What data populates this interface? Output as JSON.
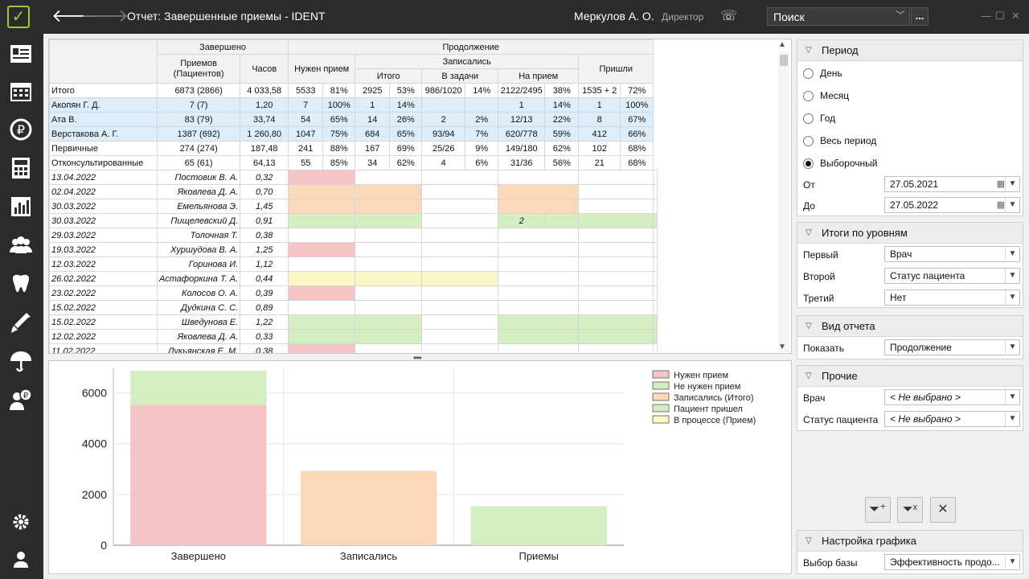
{
  "app": {
    "title": "Отчет: Завершенные приемы - IDENT",
    "user": "Меркулов А. О.",
    "role": "Директор",
    "search_placeholder": "Поиск",
    "more": "..."
  },
  "table": {
    "h_completed": "Завершено",
    "h_cont": "Продолжение",
    "h_visits": "Приемов (Пациентов)",
    "h_hours": "Часов",
    "h_need": "Нужен прием",
    "h_signed": "Записались",
    "h_total": "Итого",
    "h_tasks": "В задачи",
    "h_appt": "На прием",
    "h_came": "Пришли",
    "rows": [
      {
        "name": "Итого",
        "v": [
          "6873 (2866)",
          "4 033,58",
          "5533",
          "81%",
          "2925",
          "53%",
          "986/1020",
          "14%",
          "2122/2495",
          "38%",
          "1535 + 2",
          "72%"
        ],
        "hl": false
      },
      {
        "name": "Акопян Г. Д.",
        "v": [
          "7 (7)",
          "1,20",
          "7",
          "100%",
          "1",
          "14%",
          "",
          "",
          "1",
          "14%",
          "1",
          "100%"
        ],
        "hl": true
      },
      {
        "name": "Ата В.",
        "v": [
          "83 (79)",
          "33,74",
          "54",
          "65%",
          "14",
          "26%",
          "2",
          "2%",
          "12/13",
          "22%",
          "8",
          "67%"
        ],
        "hl": true
      },
      {
        "name": "Верстакова А. Г.",
        "v": [
          "1387 (692)",
          "1 260,80",
          "1047",
          "75%",
          "684",
          "65%",
          "93/94",
          "7%",
          "620/778",
          "59%",
          "412",
          "66%"
        ],
        "hl": true
      },
      {
        "name": "Первичные",
        "v": [
          "274 (274)",
          "187,48",
          "241",
          "88%",
          "167",
          "69%",
          "25/26",
          "9%",
          "149/180",
          "62%",
          "102",
          "68%"
        ],
        "hl": false
      },
      {
        "name": "Отконсультированные",
        "v": [
          "65 (61)",
          "64,13",
          "55",
          "85%",
          "34",
          "62%",
          "4",
          "6%",
          "31/36",
          "56%",
          "21",
          "68%"
        ]
      }
    ],
    "details": [
      {
        "date": "13.04.2022",
        "doc": "Постовик В. А.",
        "val": "0,32",
        "c": [
          "pink",
          "",
          "",
          "",
          "",
          ""
        ],
        "t": ""
      },
      {
        "date": "02.04.2022",
        "doc": "Яковлева Д. А.",
        "val": "0,70",
        "c": [
          "peach",
          "peach",
          "",
          "peach",
          "",
          ""
        ],
        "t": ""
      },
      {
        "date": "30.03.2022",
        "doc": "Емельянова Э.",
        "val": "1,45",
        "c": [
          "peach",
          "peach",
          "",
          "peach",
          "",
          ""
        ],
        "t": ""
      },
      {
        "date": "30.03.2022",
        "doc": "Пищелевский Д.",
        "val": "0,91",
        "c": [
          "green",
          "green",
          "",
          "green",
          "green",
          "green"
        ],
        "t": "2"
      },
      {
        "date": "29.03.2022",
        "doc": "Толочная Т.",
        "val": "0,38",
        "c": [
          "",
          "",
          "",
          "",
          "",
          ""
        ],
        "t": ""
      },
      {
        "date": "19.03.2022",
        "doc": "Хуршудова В. А.",
        "val": "1,25",
        "c": [
          "pink",
          "",
          "",
          "",
          "",
          ""
        ],
        "t": ""
      },
      {
        "date": "12.03.2022",
        "doc": "Горинова И.",
        "val": "1,12",
        "c": [
          "",
          "",
          "",
          "",
          "",
          ""
        ],
        "t": ""
      },
      {
        "date": "26.02.2022",
        "doc": "Астафоркина Т. А.",
        "val": "0,44",
        "c": [
          "yellow",
          "yellow",
          "yellow",
          "",
          "",
          ""
        ],
        "t": ""
      },
      {
        "date": "23.02.2022",
        "doc": "Колосов О. А.",
        "val": "0,39",
        "c": [
          "pink",
          "",
          "",
          "",
          "",
          ""
        ],
        "t": ""
      },
      {
        "date": "15.02.2022",
        "doc": "Дудкина С. С.",
        "val": "0,89",
        "c": [
          "",
          "",
          "",
          "",
          "",
          ""
        ],
        "t": ""
      },
      {
        "date": "15.02.2022",
        "doc": "Шведунова Е.",
        "val": "1,22",
        "c": [
          "green",
          "green",
          "",
          "green",
          "green",
          "green"
        ],
        "t": ""
      },
      {
        "date": "12.02.2022",
        "doc": "Яковлева Д. А.",
        "val": "0,33",
        "c": [
          "green",
          "green",
          "",
          "green",
          "green",
          "green"
        ],
        "t": ""
      },
      {
        "date": "11.02.2022",
        "doc": "Лукьянская Е. М.",
        "val": "0,38",
        "c": [
          "pink",
          "",
          "",
          "",
          "",
          ""
        ],
        "t": ""
      }
    ]
  },
  "chart_data": {
    "type": "bar",
    "categories": [
      "Завершено",
      "Записались",
      "Приемы"
    ],
    "series": [
      {
        "name": "Нужен прием",
        "color": "#f5c5c5",
        "values": [
          5533,
          0,
          0
        ]
      },
      {
        "name": "Не нужен прием",
        "color": "#d4eec2",
        "values": [
          1340,
          0,
          0
        ]
      },
      {
        "name": "Записались (Итого)",
        "color": "#fbd9b8",
        "values": [
          0,
          2925,
          0
        ]
      },
      {
        "name": "Пациент пришел",
        "color": "#d4eec2",
        "values": [
          0,
          0,
          1537
        ]
      },
      {
        "name": "В процессе (Прием)",
        "color": "#fbf6c5",
        "values": [
          0,
          0,
          0
        ]
      }
    ],
    "yticks": [
      "0",
      "2000",
      "4000",
      "6000"
    ],
    "ylim": [
      0,
      7000
    ],
    "grid": true,
    "legend": "top-right"
  },
  "panel": {
    "period": {
      "title": "Период",
      "options": [
        "День",
        "Месяц",
        "Год",
        "Весь период",
        "Выборочный"
      ],
      "selected": "Выборочный",
      "from_label": "От",
      "from": "27.05.2021",
      "to_label": "До",
      "to": "27.05.2022"
    },
    "levels": {
      "title": "Итоги по уровням",
      "first_label": "Первый",
      "first": "Врач",
      "second_label": "Второй",
      "second": "Статус пациента",
      "third_label": "Третий",
      "third": "Нет"
    },
    "view": {
      "title": "Вид отчета",
      "show_label": "Показать",
      "show": "Продолжение"
    },
    "other": {
      "title": "Прочие",
      "doctor_label": "Врач",
      "doctor": "< Не выбрано >",
      "status_label": "Статус пациента",
      "status": "< Не выбрано >"
    },
    "chartcfg": {
      "title": "Настройка графика",
      "base_label": "Выбор базы",
      "base": "Эффективность продо..."
    }
  }
}
